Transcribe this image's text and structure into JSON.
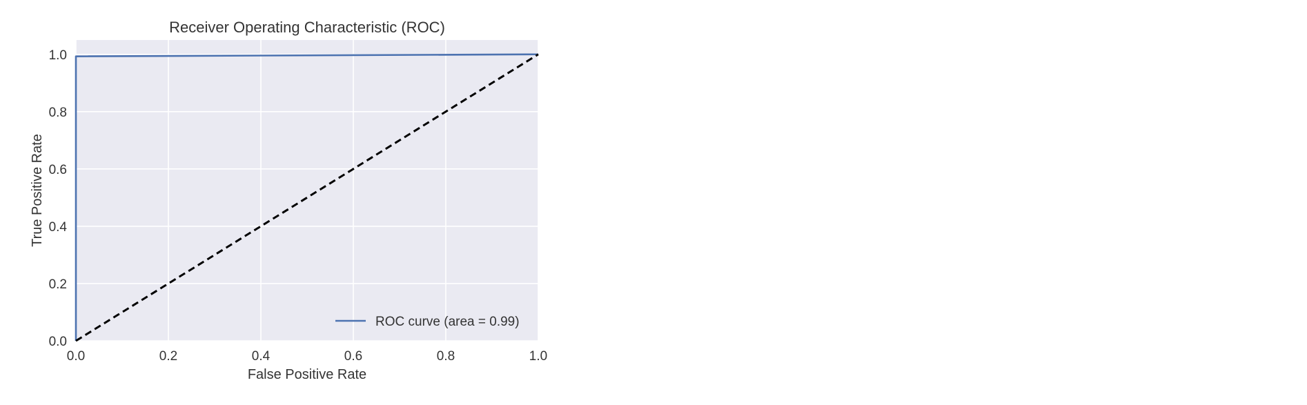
{
  "chart_data": {
    "type": "line",
    "title": "Receiver Operating Characteristic (ROC)",
    "xlabel": "False Positive Rate",
    "ylabel": "True Positive Rate",
    "xlim": [
      0.0,
      1.0
    ],
    "ylim": [
      0.0,
      1.05
    ],
    "xticks": [
      0.0,
      0.2,
      0.4,
      0.6,
      0.8,
      1.0
    ],
    "xtick_labels": [
      "0.0",
      "0.2",
      "0.4",
      "0.6",
      "0.8",
      "1.0"
    ],
    "yticks": [
      0.0,
      0.2,
      0.4,
      0.6,
      0.8,
      1.0
    ],
    "ytick_labels": [
      "0.0",
      "0.2",
      "0.4",
      "0.6",
      "0.8",
      "1.0"
    ],
    "grid": true,
    "background": "#EAEAF2",
    "legend": {
      "position": "lower-right",
      "entries": [
        "ROC curve (area = 0.99)"
      ]
    },
    "series": [
      {
        "name": "ROC curve (area = 0.99)",
        "color": "#4C72B0",
        "style": "solid",
        "x": [
          0.0,
          0.0,
          1.0
        ],
        "y": [
          0.0,
          0.993,
          1.0
        ]
      },
      {
        "color": "#000000",
        "style": "dashed",
        "x": [
          0.0,
          1.0
        ],
        "y": [
          0.0,
          1.0
        ]
      }
    ]
  }
}
